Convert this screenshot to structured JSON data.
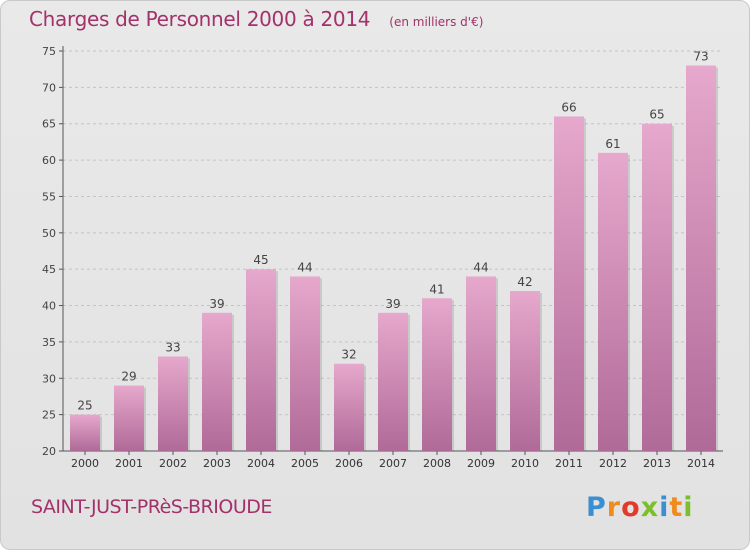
{
  "header": {
    "title": "Charges de Personnel 2000 à 2014",
    "subtitle": "(en milliers d'€)"
  },
  "footer": {
    "place": "SAINT-JUST-PRèS-BRIOUDE",
    "logo_text": "Proxiti",
    "logo_letters": [
      {
        "ch": "P",
        "color": "#3b8fd1"
      },
      {
        "ch": "r",
        "color": "#f08c1e"
      },
      {
        "ch": "o",
        "color": "#e23a2b"
      },
      {
        "ch": "x",
        "color": "#7bbf2a"
      },
      {
        "ch": "i",
        "color": "#3b8fd1"
      },
      {
        "ch": "t",
        "color": "#f08c1e"
      },
      {
        "ch": "i",
        "color": "#7bbf2a"
      }
    ]
  },
  "colors": {
    "accent": "#a3316a",
    "bar_top": "#e6a8cc",
    "bar_bottom": "#b06a98"
  },
  "chart_data": {
    "type": "bar",
    "title": "Charges de Personnel 2000 à 2014",
    "subtitle": "(en milliers d'€)",
    "categories": [
      "2000",
      "2001",
      "2002",
      "2003",
      "2004",
      "2005",
      "2006",
      "2007",
      "2008",
      "2009",
      "2010",
      "2011",
      "2012",
      "2013",
      "2014"
    ],
    "values": [
      25,
      29,
      33,
      39,
      45,
      44,
      32,
      39,
      41,
      44,
      42,
      66,
      61,
      65,
      73
    ],
    "ylim": [
      20,
      75
    ],
    "yticks": [
      20,
      25,
      30,
      35,
      40,
      45,
      50,
      55,
      60,
      65,
      70,
      75
    ],
    "grid": true,
    "legend": "none"
  }
}
